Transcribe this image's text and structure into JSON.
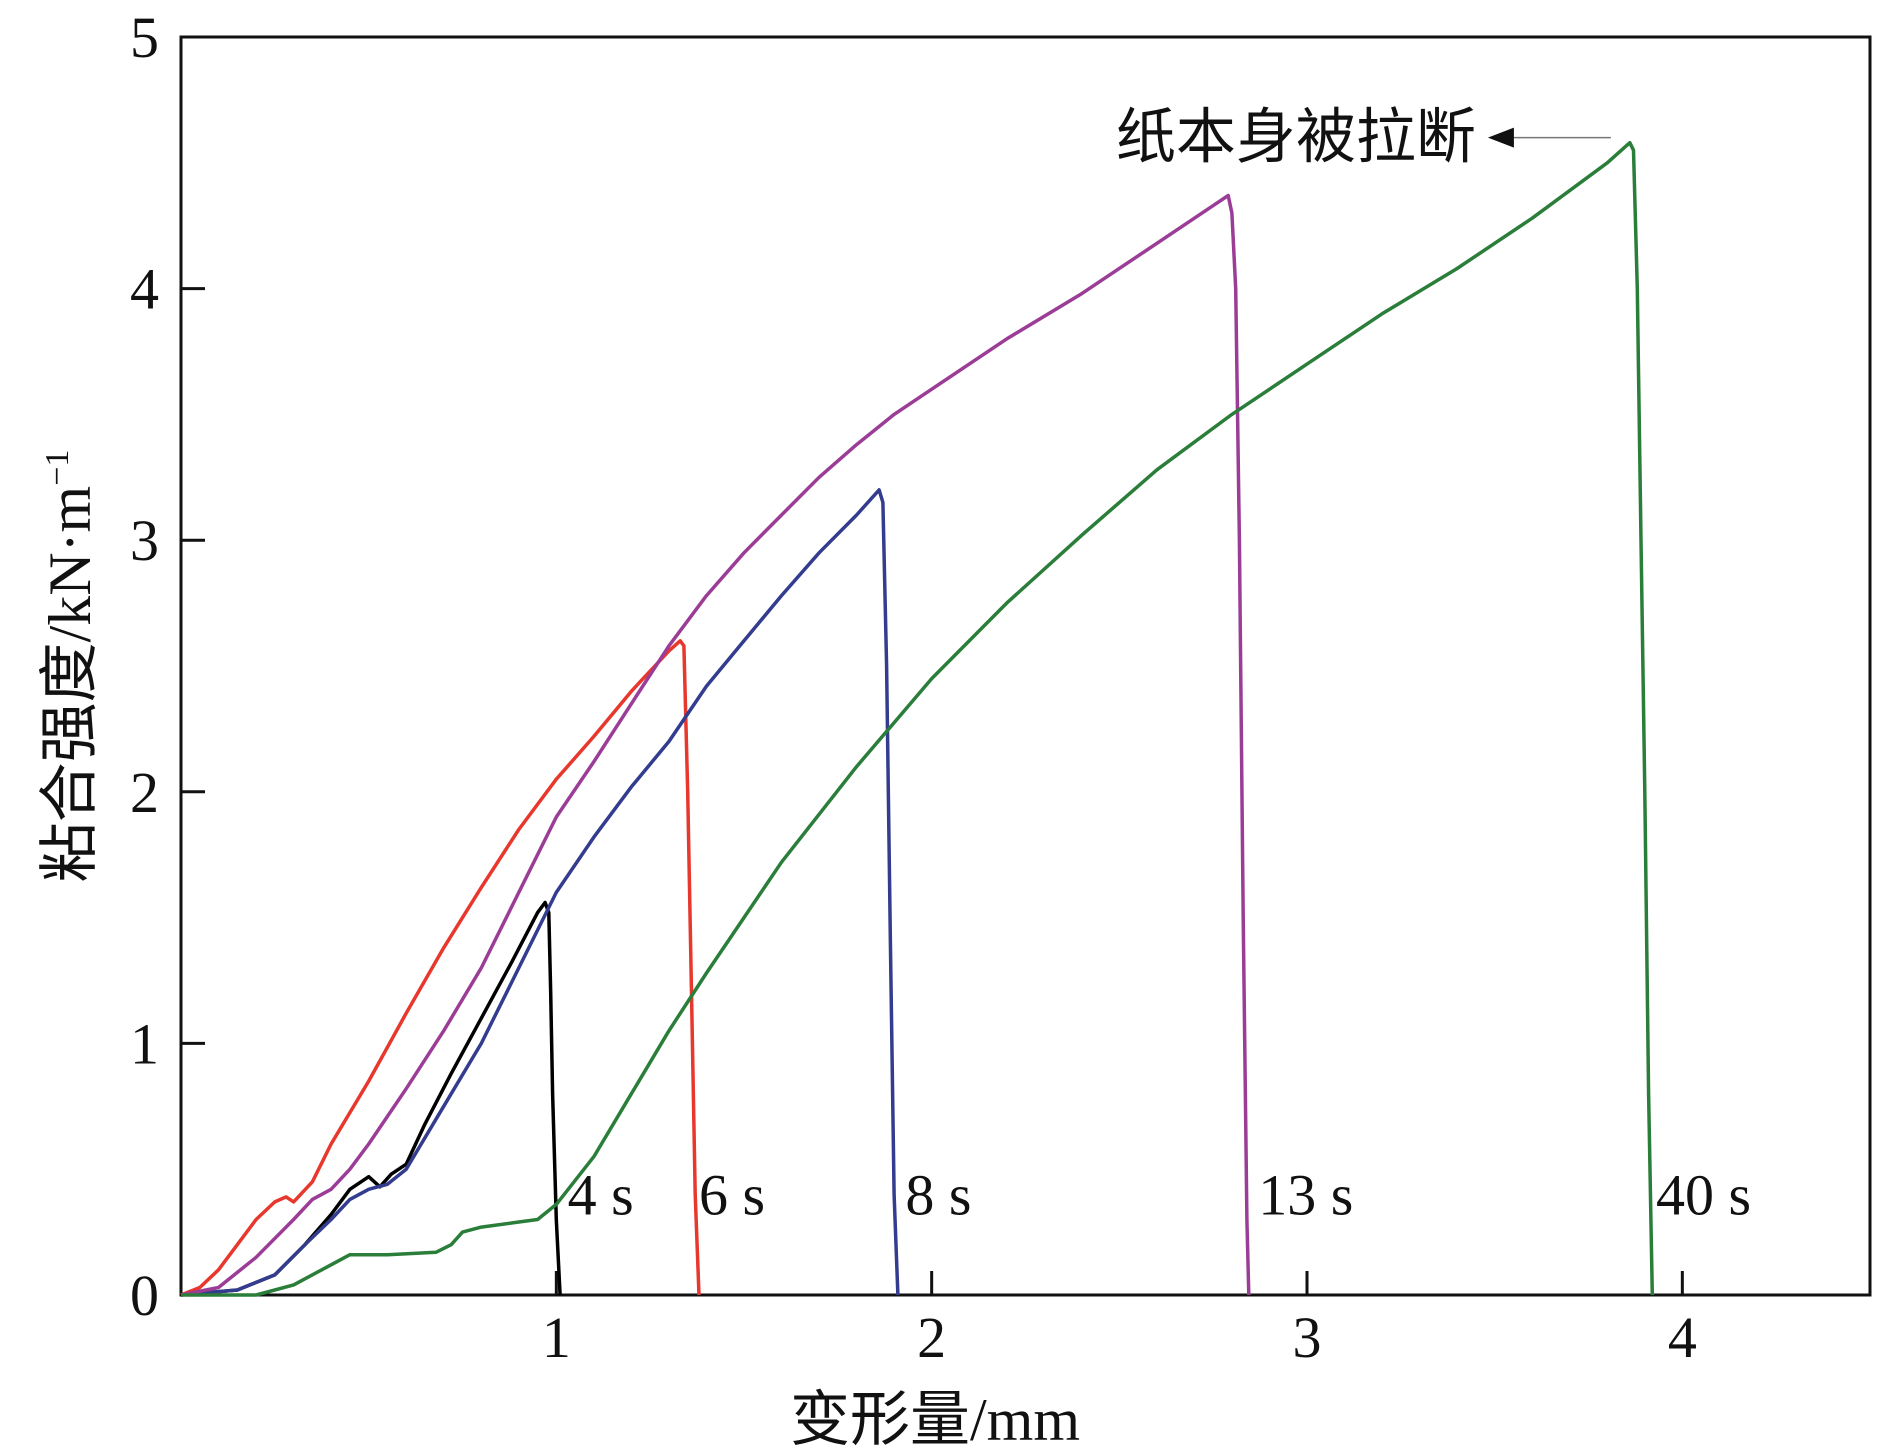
{
  "chart_data": {
    "type": "line",
    "xlabel": "变形量/mm",
    "ylabel": "粘合强度/kN·m",
    "ylabel_sup": "−1",
    "xlim": [
      0,
      4.5
    ],
    "ylim": [
      0,
      5
    ],
    "xticks": [
      1,
      2,
      3,
      4
    ],
    "yticks": [
      0,
      1,
      2,
      3,
      4,
      5
    ],
    "grid": false,
    "annotations": [
      {
        "text": "纸本身被拉断",
        "x": 3.45,
        "y": 4.6
      }
    ],
    "series": [
      {
        "label": "4 s",
        "color": "#000000",
        "label_x": 1.03,
        "label_y": 0.32,
        "points": [
          [
            0,
            0
          ],
          [
            0.15,
            0.02
          ],
          [
            0.25,
            0.08
          ],
          [
            0.33,
            0.2
          ],
          [
            0.4,
            0.32
          ],
          [
            0.45,
            0.42
          ],
          [
            0.5,
            0.47
          ],
          [
            0.53,
            0.43
          ],
          [
            0.56,
            0.48
          ],
          [
            0.6,
            0.52
          ],
          [
            0.65,
            0.68
          ],
          [
            0.72,
            0.88
          ],
          [
            0.8,
            1.1
          ],
          [
            0.88,
            1.32
          ],
          [
            0.95,
            1.52
          ],
          [
            0.97,
            1.56
          ],
          [
            0.98,
            1.52
          ],
          [
            0.985,
            1.2
          ],
          [
            0.99,
            0.8
          ],
          [
            1.0,
            0.3
          ],
          [
            1.01,
            0
          ]
        ]
      },
      {
        "label": "6 s",
        "color": "#e8372c",
        "label_x": 1.38,
        "label_y": 0.32,
        "points": [
          [
            0,
            0
          ],
          [
            0.05,
            0.03
          ],
          [
            0.1,
            0.1
          ],
          [
            0.15,
            0.2
          ],
          [
            0.2,
            0.3
          ],
          [
            0.25,
            0.37
          ],
          [
            0.28,
            0.39
          ],
          [
            0.3,
            0.37
          ],
          [
            0.35,
            0.45
          ],
          [
            0.4,
            0.6
          ],
          [
            0.5,
            0.85
          ],
          [
            0.6,
            1.12
          ],
          [
            0.7,
            1.38
          ],
          [
            0.8,
            1.62
          ],
          [
            0.9,
            1.85
          ],
          [
            1.0,
            2.05
          ],
          [
            1.1,
            2.22
          ],
          [
            1.2,
            2.4
          ],
          [
            1.3,
            2.56
          ],
          [
            1.33,
            2.6
          ],
          [
            1.34,
            2.58
          ],
          [
            1.35,
            2.0
          ],
          [
            1.36,
            1.2
          ],
          [
            1.37,
            0.4
          ],
          [
            1.38,
            0
          ]
        ]
      },
      {
        "label": "8 s",
        "color": "#333c8e",
        "label_x": 1.93,
        "label_y": 0.32,
        "points": [
          [
            0,
            0
          ],
          [
            0.15,
            0.02
          ],
          [
            0.25,
            0.08
          ],
          [
            0.33,
            0.2
          ],
          [
            0.4,
            0.3
          ],
          [
            0.45,
            0.38
          ],
          [
            0.5,
            0.42
          ],
          [
            0.55,
            0.44
          ],
          [
            0.6,
            0.5
          ],
          [
            0.7,
            0.75
          ],
          [
            0.8,
            1.0
          ],
          [
            0.9,
            1.3
          ],
          [
            1.0,
            1.6
          ],
          [
            1.1,
            1.82
          ],
          [
            1.2,
            2.02
          ],
          [
            1.3,
            2.2
          ],
          [
            1.4,
            2.42
          ],
          [
            1.5,
            2.6
          ],
          [
            1.6,
            2.78
          ],
          [
            1.7,
            2.95
          ],
          [
            1.8,
            3.1
          ],
          [
            1.86,
            3.2
          ],
          [
            1.87,
            3.15
          ],
          [
            1.88,
            2.5
          ],
          [
            1.89,
            1.4
          ],
          [
            1.9,
            0.4
          ],
          [
            1.91,
            0
          ]
        ]
      },
      {
        "label": "13 s",
        "color": "#9b3d97",
        "label_x": 2.87,
        "label_y": 0.32,
        "points": [
          [
            0,
            0
          ],
          [
            0.1,
            0.03
          ],
          [
            0.2,
            0.15
          ],
          [
            0.3,
            0.3
          ],
          [
            0.35,
            0.38
          ],
          [
            0.4,
            0.42
          ],
          [
            0.45,
            0.5
          ],
          [
            0.5,
            0.6
          ],
          [
            0.6,
            0.82
          ],
          [
            0.7,
            1.05
          ],
          [
            0.8,
            1.3
          ],
          [
            0.9,
            1.6
          ],
          [
            1.0,
            1.9
          ],
          [
            1.1,
            2.12
          ],
          [
            1.2,
            2.35
          ],
          [
            1.3,
            2.58
          ],
          [
            1.4,
            2.78
          ],
          [
            1.5,
            2.95
          ],
          [
            1.6,
            3.1
          ],
          [
            1.7,
            3.25
          ],
          [
            1.8,
            3.38
          ],
          [
            1.9,
            3.5
          ],
          [
            2.0,
            3.6
          ],
          [
            2.2,
            3.8
          ],
          [
            2.4,
            3.98
          ],
          [
            2.6,
            4.18
          ],
          [
            2.75,
            4.33
          ],
          [
            2.79,
            4.37
          ],
          [
            2.8,
            4.3
          ],
          [
            2.81,
            4.0
          ],
          [
            2.82,
            3.0
          ],
          [
            2.83,
            1.5
          ],
          [
            2.84,
            0.3
          ],
          [
            2.845,
            0
          ]
        ]
      },
      {
        "label": "40 s",
        "color": "#2a7e3a",
        "label_x": 3.93,
        "label_y": 0.32,
        "points": [
          [
            0,
            0
          ],
          [
            0.2,
            0.0
          ],
          [
            0.3,
            0.04
          ],
          [
            0.4,
            0.12
          ],
          [
            0.45,
            0.16
          ],
          [
            0.55,
            0.16
          ],
          [
            0.68,
            0.17
          ],
          [
            0.72,
            0.2
          ],
          [
            0.75,
            0.25
          ],
          [
            0.8,
            0.27
          ],
          [
            0.9,
            0.29
          ],
          [
            0.95,
            0.3
          ],
          [
            1.0,
            0.36
          ],
          [
            1.1,
            0.55
          ],
          [
            1.2,
            0.8
          ],
          [
            1.3,
            1.05
          ],
          [
            1.4,
            1.28
          ],
          [
            1.5,
            1.5
          ],
          [
            1.6,
            1.72
          ],
          [
            1.8,
            2.1
          ],
          [
            2.0,
            2.45
          ],
          [
            2.2,
            2.75
          ],
          [
            2.4,
            3.02
          ],
          [
            2.6,
            3.28
          ],
          [
            2.8,
            3.5
          ],
          [
            3.0,
            3.7
          ],
          [
            3.2,
            3.9
          ],
          [
            3.4,
            4.08
          ],
          [
            3.6,
            4.28
          ],
          [
            3.8,
            4.5
          ],
          [
            3.86,
            4.58
          ],
          [
            3.87,
            4.55
          ],
          [
            3.88,
            4.0
          ],
          [
            3.89,
            3.0
          ],
          [
            3.9,
            2.0
          ],
          [
            3.91,
            0.8
          ],
          [
            3.92,
            0
          ]
        ]
      }
    ]
  }
}
